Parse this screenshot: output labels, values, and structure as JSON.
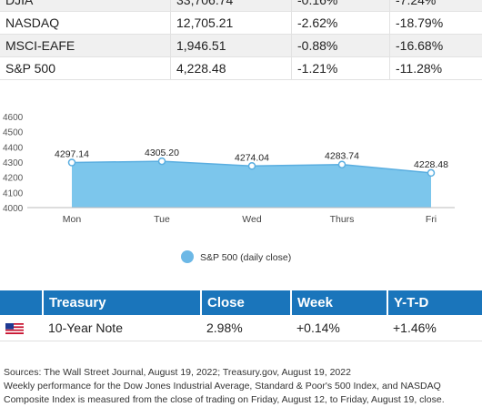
{
  "indices": [
    {
      "name": "DJIA",
      "close": "33,706.74",
      "week": "-0.16%",
      "ytd": "-7.24%"
    },
    {
      "name": "NASDAQ",
      "close": "12,705.21",
      "week": "-2.62%",
      "ytd": "-18.79%"
    },
    {
      "name": "MSCI-EAFE",
      "close": "1,946.51",
      "week": "-0.88%",
      "ytd": "-16.68%"
    },
    {
      "name": "S&P 500",
      "close": "4,228.48",
      "week": "-1.21%",
      "ytd": "-11.28%"
    }
  ],
  "chart_data": {
    "type": "area",
    "categories": [
      "Mon",
      "Tue",
      "Wed",
      "Thurs",
      "Fri"
    ],
    "series": [
      {
        "name": "S&P 500 (daily close)",
        "values": [
          4297.14,
          4305.2,
          4274.04,
          4283.74,
          4228.48
        ],
        "color": "#7cc6ec"
      }
    ],
    "data_labels": [
      "4297.14",
      "4305.20",
      "4274.04",
      "4283.74",
      "4228.48"
    ],
    "yticks": [
      "4600",
      "4500",
      "4400",
      "4300",
      "4200",
      "4100",
      "4000"
    ],
    "ylim": [
      4000,
      4600
    ],
    "legend_position": "bottom",
    "legend_color": "#6cb8e6",
    "grid": false
  },
  "treasury": {
    "headers": [
      "Treasury",
      "Close",
      "Week",
      "Y-T-D"
    ],
    "row": {
      "flag_icon": "us-flag-icon",
      "name": "10-Year Note",
      "close": "2.98%",
      "week": "+0.14%",
      "ytd": "+1.46%"
    },
    "header_color": "#1a75bb"
  },
  "sources": {
    "line1": "Sources: The Wall Street Journal, August 19, 2022; Treasury.gov, August 19, 2022",
    "line2": "Weekly performance for the Dow Jones Industrial Average, Standard & Poor's 500 Index, and NASDAQ",
    "line3": "Composite Index is measured from the close of trading on Friday, August 12, to Friday, August 19, close."
  }
}
